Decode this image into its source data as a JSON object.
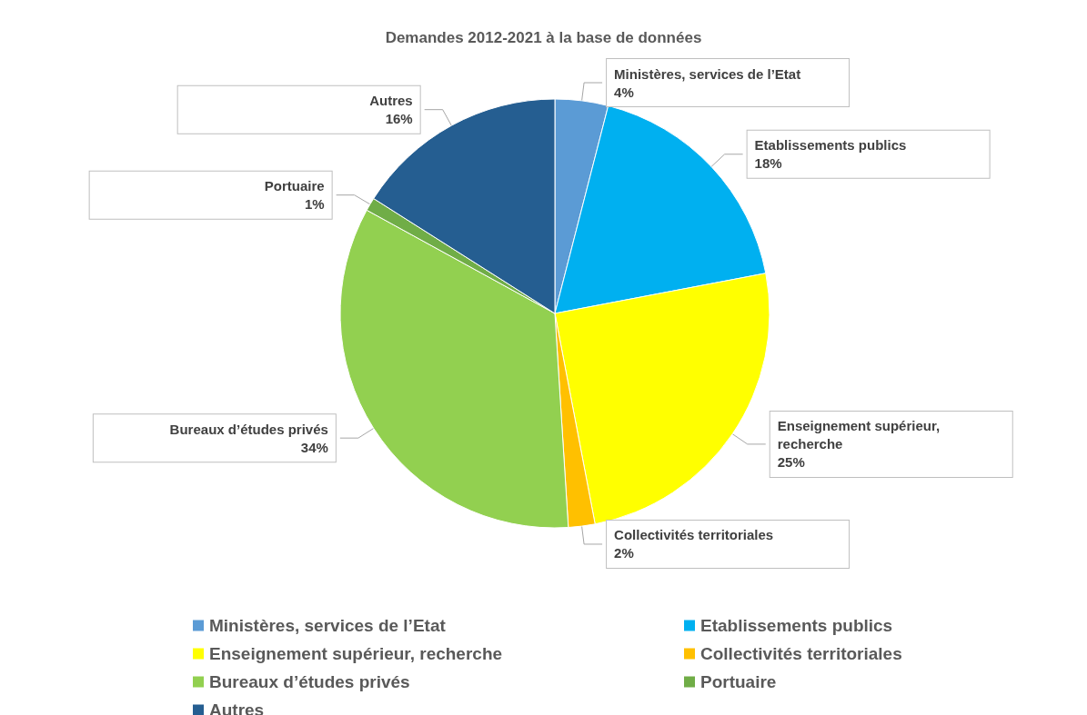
{
  "chart_data": {
    "type": "pie",
    "title": "Demandes 2012-2021 à la base de données",
    "categories": [
      "Ministères, services de l’Etat",
      "Etablissements publics",
      "Enseignement supérieur, recherche",
      "Collectivités territoriales",
      "Bureaux d’études privés",
      "Portuaire",
      "Autres"
    ],
    "values": [
      4,
      18,
      25,
      2,
      34,
      1,
      16
    ],
    "colors": [
      "#5b9bd5",
      "#00b0f0",
      "#ffff00",
      "#ffc000",
      "#92d050",
      "#70ad47",
      "#255e91"
    ],
    "value_labels": [
      "4%",
      "18%",
      "25%",
      "2%",
      "34%",
      "1%",
      "16%"
    ],
    "legend": "bottom"
  }
}
